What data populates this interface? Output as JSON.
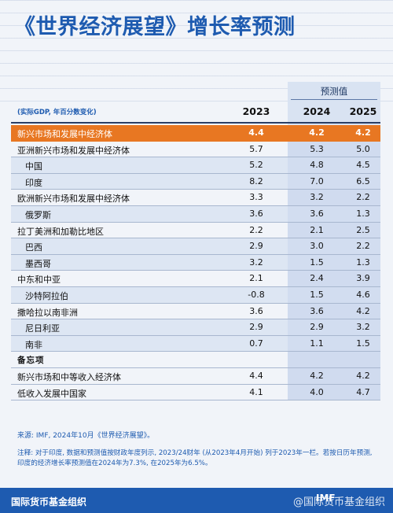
{
  "title": "《世界经济展望》增长率预测",
  "forecast_label": "预测值",
  "units_note": "(实际GDP, 年百分数变化)",
  "years": [
    "2023",
    "2024",
    "2025"
  ],
  "rows": [
    {
      "label": "新兴市场和发展中经济体",
      "values": [
        "4.4",
        "4.2",
        "4.2"
      ],
      "style": "highlight"
    },
    {
      "label": "亚洲新兴市场和发展中经济体",
      "values": [
        "5.7",
        "5.3",
        "5.0"
      ],
      "style": "main"
    },
    {
      "label": "中国",
      "values": [
        "5.2",
        "4.8",
        "4.5"
      ],
      "style": "indent"
    },
    {
      "label": "印度",
      "values": [
        "8.2",
        "7.0",
        "6.5"
      ],
      "style": "indent"
    },
    {
      "label": "欧洲新兴市场和发展中经济体",
      "values": [
        "3.3",
        "3.2",
        "2.2"
      ],
      "style": "main"
    },
    {
      "label": "俄罗斯",
      "values": [
        "3.6",
        "3.6",
        "1.3"
      ],
      "style": "indent"
    },
    {
      "label": "拉丁美洲和加勒比地区",
      "values": [
        "2.2",
        "2.1",
        "2.5"
      ],
      "style": "main"
    },
    {
      "label": "巴西",
      "values": [
        "2.9",
        "3.0",
        "2.2"
      ],
      "style": "indent"
    },
    {
      "label": "墨西哥",
      "values": [
        "3.2",
        "1.5",
        "1.3"
      ],
      "style": "indent"
    },
    {
      "label": "中东和中亚",
      "values": [
        "2.1",
        "2.4",
        "3.9"
      ],
      "style": "main"
    },
    {
      "label": "沙特阿拉伯",
      "values": [
        "-0.8",
        "1.5",
        "4.6"
      ],
      "style": "indent"
    },
    {
      "label": "撒哈拉以南非洲",
      "values": [
        "3.6",
        "3.6",
        "4.2"
      ],
      "style": "main"
    },
    {
      "label": "尼日利亚",
      "values": [
        "2.9",
        "2.9",
        "3.2"
      ],
      "style": "indent"
    },
    {
      "label": "南非",
      "values": [
        "0.7",
        "1.1",
        "1.5"
      ],
      "style": "indent"
    },
    {
      "label": "备忘项",
      "values": [
        "",
        "",
        ""
      ],
      "style": "section"
    },
    {
      "label": "新兴市场和中等收入经济体",
      "values": [
        "4.4",
        "4.2",
        "4.2"
      ],
      "style": "main"
    },
    {
      "label": "低收入发展中国家",
      "values": [
        "4.1",
        "4.0",
        "4.7"
      ],
      "style": "main"
    }
  ],
  "source": "来源: IMF, 2024年10月《世界经济展望》。",
  "note": "注释: 对于印度, 数据和预测值按财政年度列示, 2023/24财年 (从2023年4月开始) 列于2023年一栏。若按日历年预测, 印度的经济增长率预测值在2024年为7.3%, 在2025年为6.5%。",
  "org": "国际货币基金组织",
  "logo_text": "IMF",
  "watermark": "@国际货币基金组织",
  "colors": {
    "accent": "#1e5bb0",
    "highlight": "#e87722"
  }
}
